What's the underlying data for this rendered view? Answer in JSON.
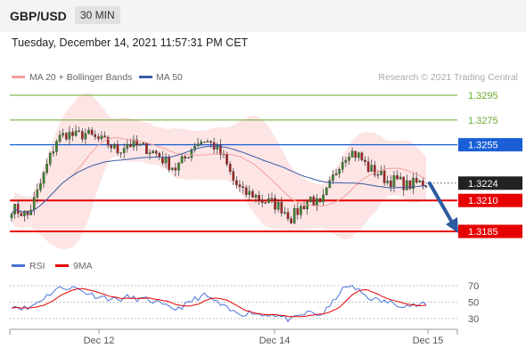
{
  "header": {
    "pair": "GBP/USD",
    "timeframe": "30 MIN",
    "timestamp": "Tuesday, December 14, 2021 11:57:31 PM CET"
  },
  "legend": {
    "bb_label": "MA 20 + Bollinger Bands",
    "ma50_label": "MA 50",
    "source": "Research © 2021 Trading Central"
  },
  "rsi_legend": {
    "rsi_label": "RSI",
    "ma_label": "9MA"
  },
  "colors": {
    "bb": "#f4a0a0",
    "bbfill": "#fde0e0",
    "ma50": "#3b5ba5",
    "resistance": "#1a5fd6",
    "support": "#e60000",
    "green": "#6aa82a",
    "current": "#222222",
    "arrow": "#2e5aa0",
    "rsi": "#4a74d8",
    "rsima": "#e60000",
    "candleUp": "#3b8a2b",
    "candleDown": "#b02020"
  },
  "chart_data": [
    {
      "type": "candlestick",
      "title": "GBP/USD",
      "ylim": [
        1.317,
        1.331
      ],
      "x_ticks": [
        "Dec 12",
        "Dec 14",
        "Dec 15"
      ],
      "levels": [
        {
          "value": 1.3295,
          "label": "1.3295",
          "style": "green"
        },
        {
          "value": 1.3275,
          "label": "1.3275",
          "style": "green"
        },
        {
          "value": 1.3255,
          "label": "1.3255",
          "style": "resistance"
        },
        {
          "value": 1.3224,
          "label": "1.3224",
          "style": "current"
        },
        {
          "value": 1.321,
          "label": "1.3210",
          "style": "support"
        },
        {
          "value": 1.3185,
          "label": "1.3185",
          "style": "support"
        }
      ],
      "anchors": [
        [
          0,
          1.3204
        ],
        [
          5,
          1.3198
        ],
        [
          8,
          1.3216
        ],
        [
          11,
          1.3238
        ],
        [
          14,
          1.3259
        ],
        [
          17,
          1.3264
        ],
        [
          20,
          1.3262
        ],
        [
          23,
          1.3264
        ],
        [
          26,
          1.326
        ],
        [
          30,
          1.3256
        ],
        [
          33,
          1.325
        ],
        [
          36,
          1.3256
        ],
        [
          39,
          1.3254
        ],
        [
          42,
          1.3252
        ],
        [
          45,
          1.3248
        ],
        [
          48,
          1.3241
        ],
        [
          51,
          1.3236
        ],
        [
          54,
          1.3244
        ],
        [
          57,
          1.3256
        ],
        [
          60,
          1.3259
        ],
        [
          63,
          1.3254
        ],
        [
          66,
          1.3244
        ],
        [
          69,
          1.3226
        ],
        [
          72,
          1.3216
        ],
        [
          75,
          1.3215
        ],
        [
          78,
          1.321
        ],
        [
          81,
          1.3208
        ],
        [
          84,
          1.3204
        ],
        [
          87,
          1.3196
        ],
        [
          90,
          1.3204
        ],
        [
          93,
          1.3212
        ],
        [
          96,
          1.3205
        ],
        [
          99,
          1.3222
        ],
        [
          102,
          1.324
        ],
        [
          105,
          1.325
        ],
        [
          108,
          1.3246
        ],
        [
          111,
          1.3236
        ],
        [
          114,
          1.3232
        ],
        [
          117,
          1.3226
        ],
        [
          120,
          1.3226
        ],
        [
          123,
          1.3222
        ],
        [
          126,
          1.3224
        ],
        [
          129,
          1.3224
        ]
      ]
    },
    {
      "type": "line",
      "title": "RSI",
      "ylim": [
        20,
        80
      ],
      "y_ticks": [
        70,
        50,
        30
      ],
      "anchors": [
        [
          0,
          46
        ],
        [
          5,
          42
        ],
        [
          8,
          50
        ],
        [
          11,
          58
        ],
        [
          14,
          66
        ],
        [
          17,
          68
        ],
        [
          20,
          67
        ],
        [
          23,
          62
        ],
        [
          26,
          58
        ],
        [
          30,
          55
        ],
        [
          33,
          53
        ],
        [
          36,
          56
        ],
        [
          39,
          54
        ],
        [
          42,
          53
        ],
        [
          45,
          50
        ],
        [
          48,
          44
        ],
        [
          51,
          42
        ],
        [
          54,
          46
        ],
        [
          57,
          54
        ],
        [
          60,
          58
        ],
        [
          63,
          52
        ],
        [
          66,
          44
        ],
        [
          69,
          38
        ],
        [
          72,
          36
        ],
        [
          75,
          38
        ],
        [
          78,
          34
        ],
        [
          81,
          36
        ],
        [
          84,
          32
        ],
        [
          87,
          28
        ],
        [
          90,
          34
        ],
        [
          93,
          38
        ],
        [
          96,
          34
        ],
        [
          99,
          44
        ],
        [
          102,
          62
        ],
        [
          105,
          70
        ],
        [
          108,
          64
        ],
        [
          111,
          56
        ],
        [
          114,
          52
        ],
        [
          117,
          50
        ],
        [
          120,
          48
        ],
        [
          123,
          46
        ],
        [
          126,
          46
        ],
        [
          129,
          47
        ]
      ]
    }
  ]
}
